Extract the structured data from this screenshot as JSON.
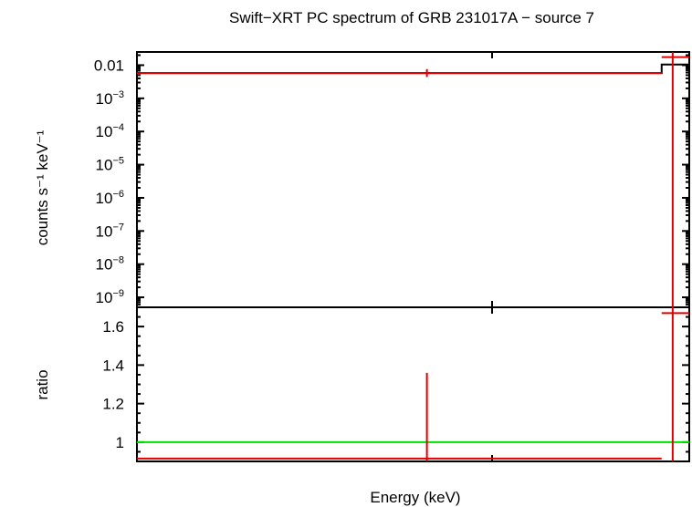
{
  "chart_data": [
    {
      "type": "line",
      "panel": "spectrum",
      "title": "Swift−XRT PC spectrum of GRB 231017A − source 7",
      "xlabel": "Energy (keV)",
      "ylabel": "counts s⁻¹ keV⁻¹",
      "yscale": "log",
      "ylim": [
        5e-10,
        0.025
      ],
      "y_ticks": [
        {
          "value": 0.01,
          "label": "0.01"
        },
        {
          "value": 0.001,
          "label": "10",
          "exp": "−3"
        },
        {
          "value": 0.0001,
          "label": "10",
          "exp": "−4"
        },
        {
          "value": 1e-05,
          "label": "10",
          "exp": "−5"
        },
        {
          "value": 1e-06,
          "label": "10",
          "exp": "−6"
        },
        {
          "value": 1e-07,
          "label": "10",
          "exp": "−7"
        },
        {
          "value": 1e-08,
          "label": "10",
          "exp": "−8"
        },
        {
          "value": 1e-09,
          "label": "10",
          "exp": "−9"
        }
      ],
      "series": [
        {
          "role": "model",
          "color": "#000000",
          "steps": [
            {
              "x0": 0.0,
              "x1": 0.95,
              "y": 0.0058
            },
            {
              "x0": 0.95,
              "x1": 1.0,
              "y": 0.0105
            }
          ]
        },
        {
          "role": "data",
          "color": "#e00000",
          "points": [
            {
              "x0": 0.0,
              "x1": 0.95,
              "xc": 0.525,
              "y": 0.0058,
              "ylo": 0.0044,
              "yhi": 0.0076
            },
            {
              "x0": 0.95,
              "x1": 1.0,
              "xc": 0.97,
              "y": 0.0175,
              "ylo": 5e-10,
              "yhi": 0.025
            }
          ]
        }
      ]
    },
    {
      "type": "line",
      "panel": "ratio",
      "xlabel": "Energy (keV)",
      "ylabel": "ratio",
      "ylim": [
        0.9,
        1.7
      ],
      "y_ticks": [
        1.6,
        1.4,
        1.2,
        1
      ],
      "reference_line": {
        "y": 1,
        "color": "#00e000"
      },
      "series": [
        {
          "role": "ratio",
          "color": "#e00000",
          "points": [
            {
              "x0": 0.0,
              "x1": 0.95,
              "xc": 0.525,
              "y": 0.915,
              "ylo": 0.9,
              "yhi": 1.36
            },
            {
              "x0": 0.95,
              "x1": 1.0,
              "xc": 0.97,
              "y": 1.67,
              "ylo": 0.9,
              "yhi": 1.7
            }
          ]
        }
      ]
    }
  ]
}
